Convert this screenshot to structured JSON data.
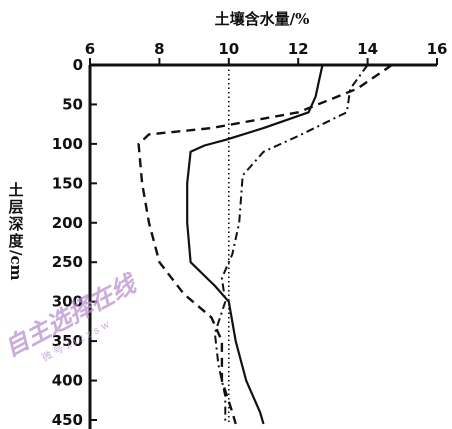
{
  "chart_data": {
    "type": "line",
    "title": "",
    "xlabel": "土壤含水量/%",
    "ylabel": "土层深度/cm",
    "x_axis_position": "top",
    "xlim": [
      6,
      16
    ],
    "ylim": [
      0,
      450
    ],
    "xticks": [
      "6",
      "8",
      "10",
      "12",
      "14",
      "16"
    ],
    "yticks": [
      "0",
      "50",
      "100",
      "150",
      "200",
      "250",
      "300",
      "350",
      "400",
      "450"
    ],
    "grid": false,
    "legend": "none",
    "series": [
      {
        "style": "solid",
        "points": [
          [
            12.7,
            0
          ],
          [
            12.6,
            20
          ],
          [
            12.5,
            40
          ],
          [
            12.3,
            60
          ],
          [
            11.0,
            80
          ],
          [
            9.9,
            95
          ],
          [
            9.3,
            102
          ],
          [
            8.9,
            110
          ],
          [
            8.8,
            150
          ],
          [
            8.8,
            200
          ],
          [
            8.9,
            250
          ],
          [
            9.6,
            280
          ],
          [
            10.0,
            300
          ],
          [
            10.2,
            350
          ],
          [
            10.5,
            400
          ],
          [
            10.9,
            440
          ],
          [
            11.0,
            455
          ]
        ]
      },
      {
        "style": "dashed",
        "points": [
          [
            14.7,
            0
          ],
          [
            13.7,
            30
          ],
          [
            12.0,
            60
          ],
          [
            9.5,
            80
          ],
          [
            7.7,
            88
          ],
          [
            7.4,
            100
          ],
          [
            7.5,
            150
          ],
          [
            7.7,
            200
          ],
          [
            8.0,
            250
          ],
          [
            8.7,
            290
          ],
          [
            9.5,
            320
          ],
          [
            9.8,
            350
          ],
          [
            9.8,
            400
          ],
          [
            10.1,
            440
          ],
          [
            10.2,
            455
          ]
        ]
      },
      {
        "style": "dashdot",
        "points": [
          [
            14.0,
            0
          ],
          [
            13.5,
            30
          ],
          [
            13.4,
            60
          ],
          [
            12.0,
            90
          ],
          [
            11.0,
            110
          ],
          [
            10.4,
            140
          ],
          [
            10.3,
            200
          ],
          [
            10.1,
            240
          ],
          [
            9.8,
            270
          ],
          [
            9.9,
            300
          ],
          [
            9.6,
            340
          ],
          [
            9.7,
            380
          ],
          [
            9.9,
            420
          ],
          [
            9.9,
            455
          ]
        ]
      },
      {
        "style": "dotted",
        "points": [
          [
            10.0,
            0
          ],
          [
            10.0,
            455
          ]
        ]
      }
    ]
  },
  "watermark": {
    "text": "自主选择在线",
    "sub": "微 号 z i z z s w"
  }
}
